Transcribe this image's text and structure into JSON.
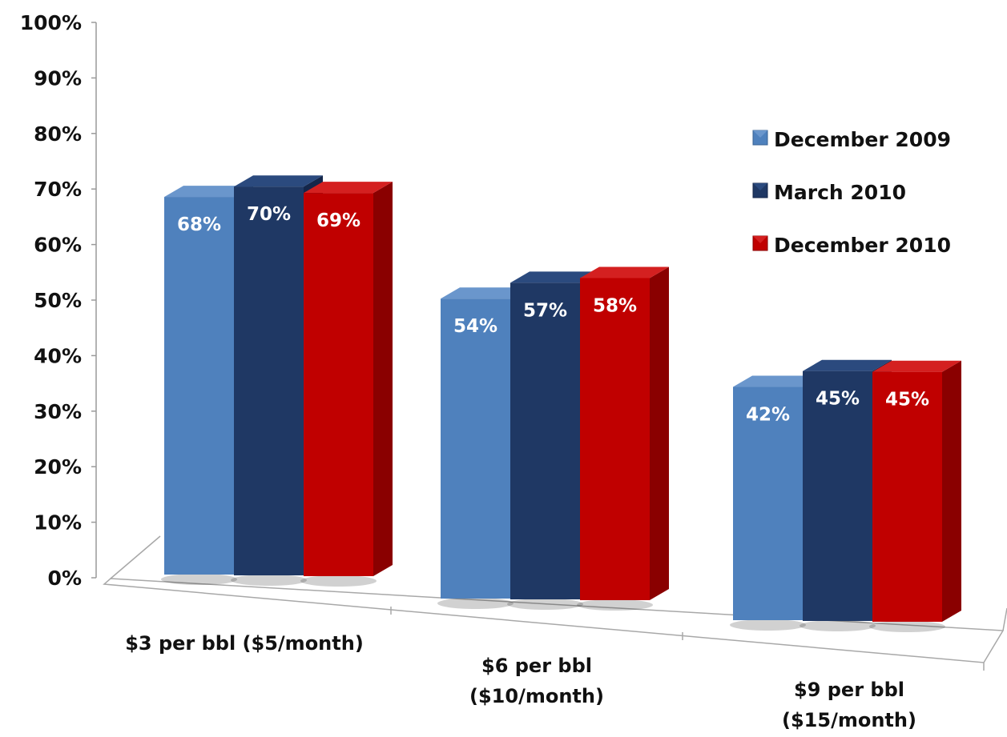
{
  "chart_data": {
    "type": "bar",
    "title": "",
    "xlabel": "",
    "ylabel": "",
    "ylim": [
      0,
      100
    ],
    "yticks": [
      "0%",
      "10%",
      "20%",
      "30%",
      "40%",
      "50%",
      "60%",
      "70%",
      "80%",
      "90%",
      "100%"
    ],
    "categories": [
      [
        "$3 per bbl ($5/month)"
      ],
      [
        "$6 per bbl",
        "($10/month)"
      ],
      [
        "$9 per bbl",
        "($15/month)"
      ]
    ],
    "series": [
      {
        "name": "December 2009",
        "values": [
          68,
          54,
          42
        ],
        "labels": [
          "68%",
          "54%",
          "42%"
        ],
        "color": "#4f81bd",
        "top": "#6a96cc",
        "side": "#3a6394"
      },
      {
        "name": "March 2010",
        "values": [
          70,
          57,
          45
        ],
        "labels": [
          "70%",
          "57%",
          "45%"
        ],
        "color": "#1f3864",
        "top": "#2b4a7e",
        "side": "#14264a"
      },
      {
        "name": "December 2010",
        "values": [
          69,
          58,
          45
        ],
        "labels": [
          "69%",
          "58%",
          "45%"
        ],
        "color": "#c00000",
        "top": "#d42020",
        "side": "#8a0000"
      }
    ],
    "grid": false,
    "legend_position": "right",
    "style": "3d"
  }
}
